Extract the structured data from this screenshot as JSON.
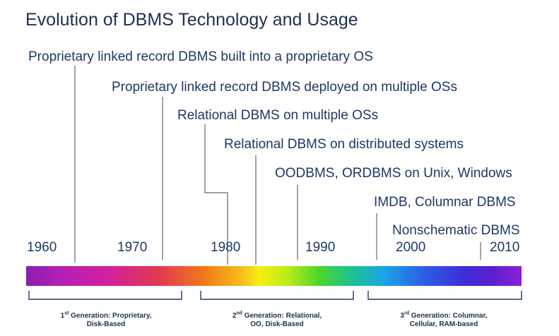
{
  "title": "Evolution of DBMS Technology and Usage",
  "events": [
    "Proprietary linked record DBMS built into a proprietary OS",
    "Proprietary linked record DBMS deployed on multiple OSs",
    "Relational DBMS on multiple OSs",
    "Relational DBMS on distributed systems",
    "OODBMS, ORDBMS on Unix, Windows",
    "IMDB, Columnar DBMS",
    "Nonschematic DBMS"
  ],
  "timeline": {
    "years": [
      "1960",
      "1970",
      "1980",
      "1990",
      "2000",
      "2010"
    ]
  },
  "generations": [
    {
      "ordinal": "1",
      "suffix": "st",
      "line1": "Generation: Proprietary,",
      "line2": "Disk-Based"
    },
    {
      "ordinal": "2",
      "suffix": "nd",
      "line1": "Generation: Relational,",
      "line2": "OO, Disk-Based"
    },
    {
      "ordinal": "3",
      "suffix": "rd",
      "line1": "Generation: Columnar,",
      "line2": "Cellular, RAM-based"
    }
  ],
  "colors": {
    "text": "#1f3864",
    "leader_lines": "#666666",
    "brackets": "#1f3864"
  }
}
